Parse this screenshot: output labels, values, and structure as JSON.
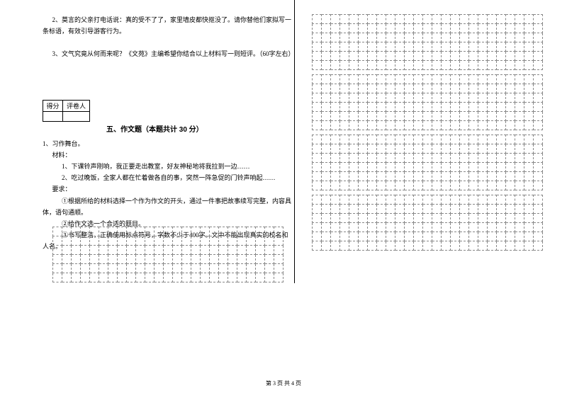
{
  "q2": "2、莫言的父亲打电话说：真的受不了了，家里墙皮都快抠没了。请你替他们家拟写一条标语，有效引导游客行为。",
  "q3": "3、文气究竟从何而来呢？《文苑》主编希望你结合以上材料写一则短评。（60字左右）",
  "scoreHeaders": {
    "a": "得分",
    "b": "评卷人"
  },
  "sectionTitle": "五、作文题（本题共计 30 分）",
  "essay": {
    "l1": "1、习作舞台。",
    "l2": "材料：",
    "l3": "1、下课铃声刚响，我正要走出教室，好友神秘地将我拉到一边……",
    "l4": "2、吃过晚饭，全家人都在忙着做各自的事，突然一阵急促的门铃声响起……",
    "l5": "要求：",
    "l6": "①根据所给的材料选择一个作为作文的开头，通过一件事把故事续写完整，内容具体，语句通顺。",
    "l7": "②给作文选一个合适的题目。",
    "l8": "③书写整洁，正确使用标点符号，字数不少于400字。文中不能出现真实的校名和人名。"
  },
  "footer": "第 3 页 共 4 页",
  "gridStyle": {
    "cellSize": 13,
    "borderColor": "#888888",
    "borderStyle": "dashed"
  },
  "rightGrids": [
    {
      "rows": 6,
      "cols": 25
    },
    {
      "rows": 6,
      "cols": 25
    },
    {
      "rows": 6,
      "cols": 25
    },
    {
      "rows": 6,
      "cols": 25
    }
  ],
  "bottomGrid": {
    "rows": 6,
    "cols": 25
  }
}
